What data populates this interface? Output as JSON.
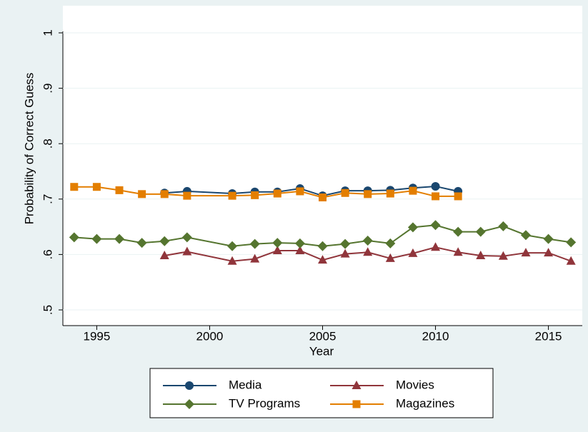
{
  "chart_data": {
    "type": "line",
    "xlabel": "Year",
    "ylabel": "Probability of Correct Guess",
    "xlim": [
      1993.5,
      2016.5
    ],
    "ylim": [
      0.5,
      1
    ],
    "xticks": [
      1995,
      2000,
      2005,
      2010,
      2015
    ],
    "yticks": [
      {
        "value": 0.5,
        "label": ".5"
      },
      {
        "value": 0.6,
        "label": ".6"
      },
      {
        "value": 0.7,
        "label": ".7"
      },
      {
        "value": 0.8,
        "label": ".8"
      },
      {
        "value": 0.9,
        "label": ".9"
      },
      1
    ],
    "grid": true,
    "legend": "bottom",
    "series": [
      {
        "name": "Media",
        "color": "#1a476f",
        "marker": "circle",
        "x": [
          1998,
          1999,
          2001,
          2002,
          2003,
          2004,
          2005,
          2006,
          2007,
          2008,
          2009,
          2010,
          2011
        ],
        "values": [
          0.711,
          0.714,
          0.71,
          0.713,
          0.713,
          0.719,
          0.706,
          0.715,
          0.715,
          0.716,
          0.72,
          0.723,
          0.714
        ]
      },
      {
        "name": "Movies",
        "color": "#90353b",
        "marker": "triangle",
        "x": [
          1998,
          1999,
          2001,
          2002,
          2003,
          2004,
          2005,
          2006,
          2007,
          2008,
          2009,
          2010,
          2011,
          2012,
          2013,
          2014,
          2015,
          2016
        ],
        "values": [
          0.598,
          0.605,
          0.588,
          0.592,
          0.607,
          0.607,
          0.59,
          0.601,
          0.604,
          0.593,
          0.602,
          0.613,
          0.604,
          0.598,
          0.597,
          0.603,
          0.603,
          0.588
        ]
      },
      {
        "name": "TV Programs",
        "color": "#55752f",
        "marker": "diamond",
        "x": [
          1994,
          1995,
          1996,
          1997,
          1998,
          1999,
          2001,
          2002,
          2003,
          2004,
          2005,
          2006,
          2007,
          2008,
          2009,
          2010,
          2011,
          2012,
          2013,
          2014,
          2015,
          2016
        ],
        "values": [
          0.631,
          0.628,
          0.628,
          0.621,
          0.624,
          0.631,
          0.615,
          0.619,
          0.621,
          0.62,
          0.615,
          0.619,
          0.625,
          0.62,
          0.649,
          0.653,
          0.641,
          0.641,
          0.651,
          0.635,
          0.628,
          0.622
        ]
      },
      {
        "name": "Magazines",
        "color": "#e37e00",
        "marker": "square",
        "x": [
          1994,
          1995,
          1996,
          1997,
          1998,
          1999,
          2001,
          2002,
          2003,
          2004,
          2005,
          2006,
          2007,
          2008,
          2009,
          2010,
          2011
        ],
        "values": [
          0.722,
          0.722,
          0.716,
          0.709,
          0.709,
          0.706,
          0.706,
          0.707,
          0.71,
          0.714,
          0.703,
          0.711,
          0.709,
          0.71,
          0.715,
          0.705,
          0.705
        ]
      }
    ]
  }
}
